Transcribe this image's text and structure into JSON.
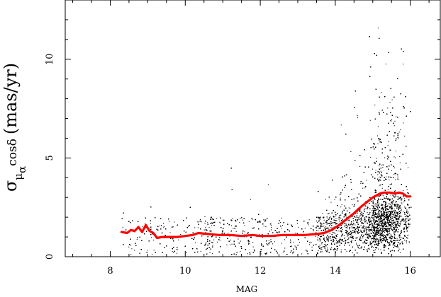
{
  "chart_data": {
    "type": "scatter",
    "xlabel": "MAG",
    "ylabel": {
      "symbol": "σ",
      "subscript": "μ",
      "subsubscript": "α",
      "text": "cosδ",
      "unit": "(mas/yr)"
    },
    "xlim": [
      6.8,
      16.8
    ],
    "ylim": [
      0,
      13
    ],
    "xticks": [
      8,
      10,
      12,
      14,
      16
    ],
    "yticks": [
      0,
      5,
      10
    ],
    "grid": false,
    "legend": "none",
    "colors": {
      "points": "#000000",
      "median_line": "#ff0000",
      "axes": "#000000"
    },
    "points_description_n": 20000,
    "median_series": {
      "x": [
        8.3,
        8.45,
        8.55,
        8.65,
        8.75,
        8.85,
        8.95,
        9.05,
        9.15,
        9.25,
        9.4,
        9.6,
        9.8,
        10.0,
        10.2,
        10.35,
        10.6,
        10.9,
        11.2,
        11.5,
        11.8,
        12.0,
        12.3,
        12.6,
        12.9,
        13.2,
        13.5,
        13.7,
        13.9,
        14.1,
        14.3,
        14.5,
        14.7,
        14.9,
        15.0,
        15.1,
        15.2,
        15.3,
        15.45,
        15.6,
        15.7,
        15.8,
        15.9,
        16.0
      ],
      "y": [
        1.25,
        1.2,
        1.35,
        1.3,
        1.5,
        1.25,
        1.6,
        1.3,
        1.2,
        0.95,
        1.0,
        1.0,
        1.0,
        1.05,
        1.1,
        1.2,
        1.15,
        1.1,
        1.1,
        1.05,
        1.1,
        1.05,
        1.05,
        1.1,
        1.1,
        1.1,
        1.15,
        1.2,
        1.35,
        1.6,
        1.9,
        2.2,
        2.55,
        2.85,
        3.0,
        3.1,
        3.2,
        3.25,
        3.25,
        3.2,
        3.25,
        3.2,
        3.05,
        3.05
      ]
    }
  }
}
